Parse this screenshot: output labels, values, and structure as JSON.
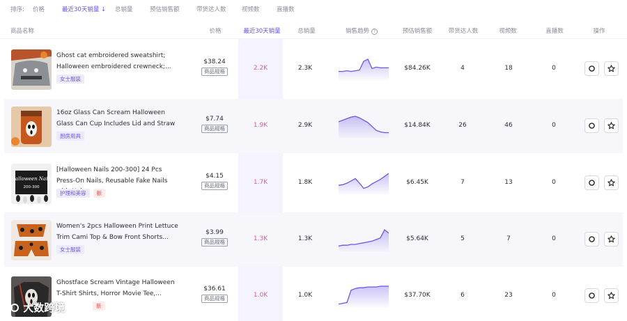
{
  "sort_bar": {
    "label": "排序:",
    "options": [
      {
        "label": "价格",
        "active": false
      },
      {
        "label": "最近30天销量 ↓",
        "active": true
      },
      {
        "label": "总销量",
        "active": false
      },
      {
        "label": "预估销售额",
        "active": false
      },
      {
        "label": "带货达人数",
        "active": false
      },
      {
        "label": "视频数",
        "active": false
      },
      {
        "label": "直播数",
        "active": false
      }
    ]
  },
  "columns": {
    "name": "商品名称",
    "price": "价格",
    "sales30": "最近30天销量",
    "total": "总销量",
    "trend": "销售趋势",
    "revenue": "预估销售额",
    "creators": "带货达人数",
    "videos": "视频数",
    "lives": "直播数",
    "actions": "操作"
  },
  "spec_label": "商品规格",
  "accent_color": "#6a56e8",
  "highlight_color": "#e05a9c",
  "products": [
    {
      "title": "Ghost cat embroidered sweatshirt; Halloween embroidered crewneck;...",
      "tags": [
        {
          "text": "女士服装",
          "type": "cat"
        }
      ],
      "price": "$38.24",
      "sales30": "2.2K",
      "total": "2.3K",
      "trend": [
        10,
        10,
        11,
        10,
        11,
        12,
        24,
        27,
        14,
        16,
        15,
        15,
        15
      ],
      "revenue": "$84.26K",
      "creators": "4",
      "videos": "18",
      "lives": "0"
    },
    {
      "title": "16oz Glass Can Scream Halloween Glass Can Cup Includes Lid and Straw",
      "tags": [
        {
          "text": "厨房用具",
          "type": "cat"
        }
      ],
      "price": "$7.74",
      "sales30": "1.9K",
      "total": "2.9K",
      "trend": [
        18,
        20,
        22,
        24,
        25,
        23,
        20,
        17,
        12,
        7,
        5,
        4,
        4
      ],
      "revenue": "$14.84K",
      "creators": "26",
      "videos": "46",
      "lives": "0"
    },
    {
      "title": "[Halloween Nails 200-300] 24 Pcs Press-On Nails, Reusable Fake Nails with Nai...",
      "tags": [
        {
          "text": "护理和美容",
          "type": "cat"
        },
        {
          "text": "新",
          "type": "new"
        }
      ],
      "price": "$4.15",
      "sales30": "1.7K",
      "total": "1.8K",
      "trend": [
        10,
        11,
        13,
        16,
        19,
        13,
        6,
        8,
        12,
        15,
        18,
        22,
        26
      ],
      "revenue": "$6.45K",
      "creators": "7",
      "videos": "13",
      "lives": "0"
    },
    {
      "title": "Women's 2pcs Halloween Print Lettuce Trim Cami Top & Bow Front Shorts...",
      "tags": [
        {
          "text": "女士服装",
          "type": "cat"
        }
      ],
      "price": "$3.99",
      "sales30": "1.3K",
      "total": "1.3K",
      "trend": [
        4,
        5,
        5,
        6,
        6,
        7,
        8,
        9,
        10,
        12,
        14,
        24,
        20
      ],
      "revenue": "$5.64K",
      "creators": "5",
      "videos": "7",
      "lives": "0"
    },
    {
      "title": "Ghostface Scream Vintage Halloween T-Shirt Shirts, Horror Movie Tee,...",
      "tags": [
        {
          "text": "新",
          "type": "new"
        }
      ],
      "price": "$36.61",
      "sales30": "1.0K",
      "total": "1.0K",
      "trend": [
        2,
        3,
        4,
        20,
        22,
        23,
        23,
        24,
        24,
        24,
        25,
        25,
        25
      ],
      "revenue": "$37.70K",
      "creators": "6",
      "videos": "23",
      "lives": "0"
    }
  ],
  "watermark": "大数跨境"
}
